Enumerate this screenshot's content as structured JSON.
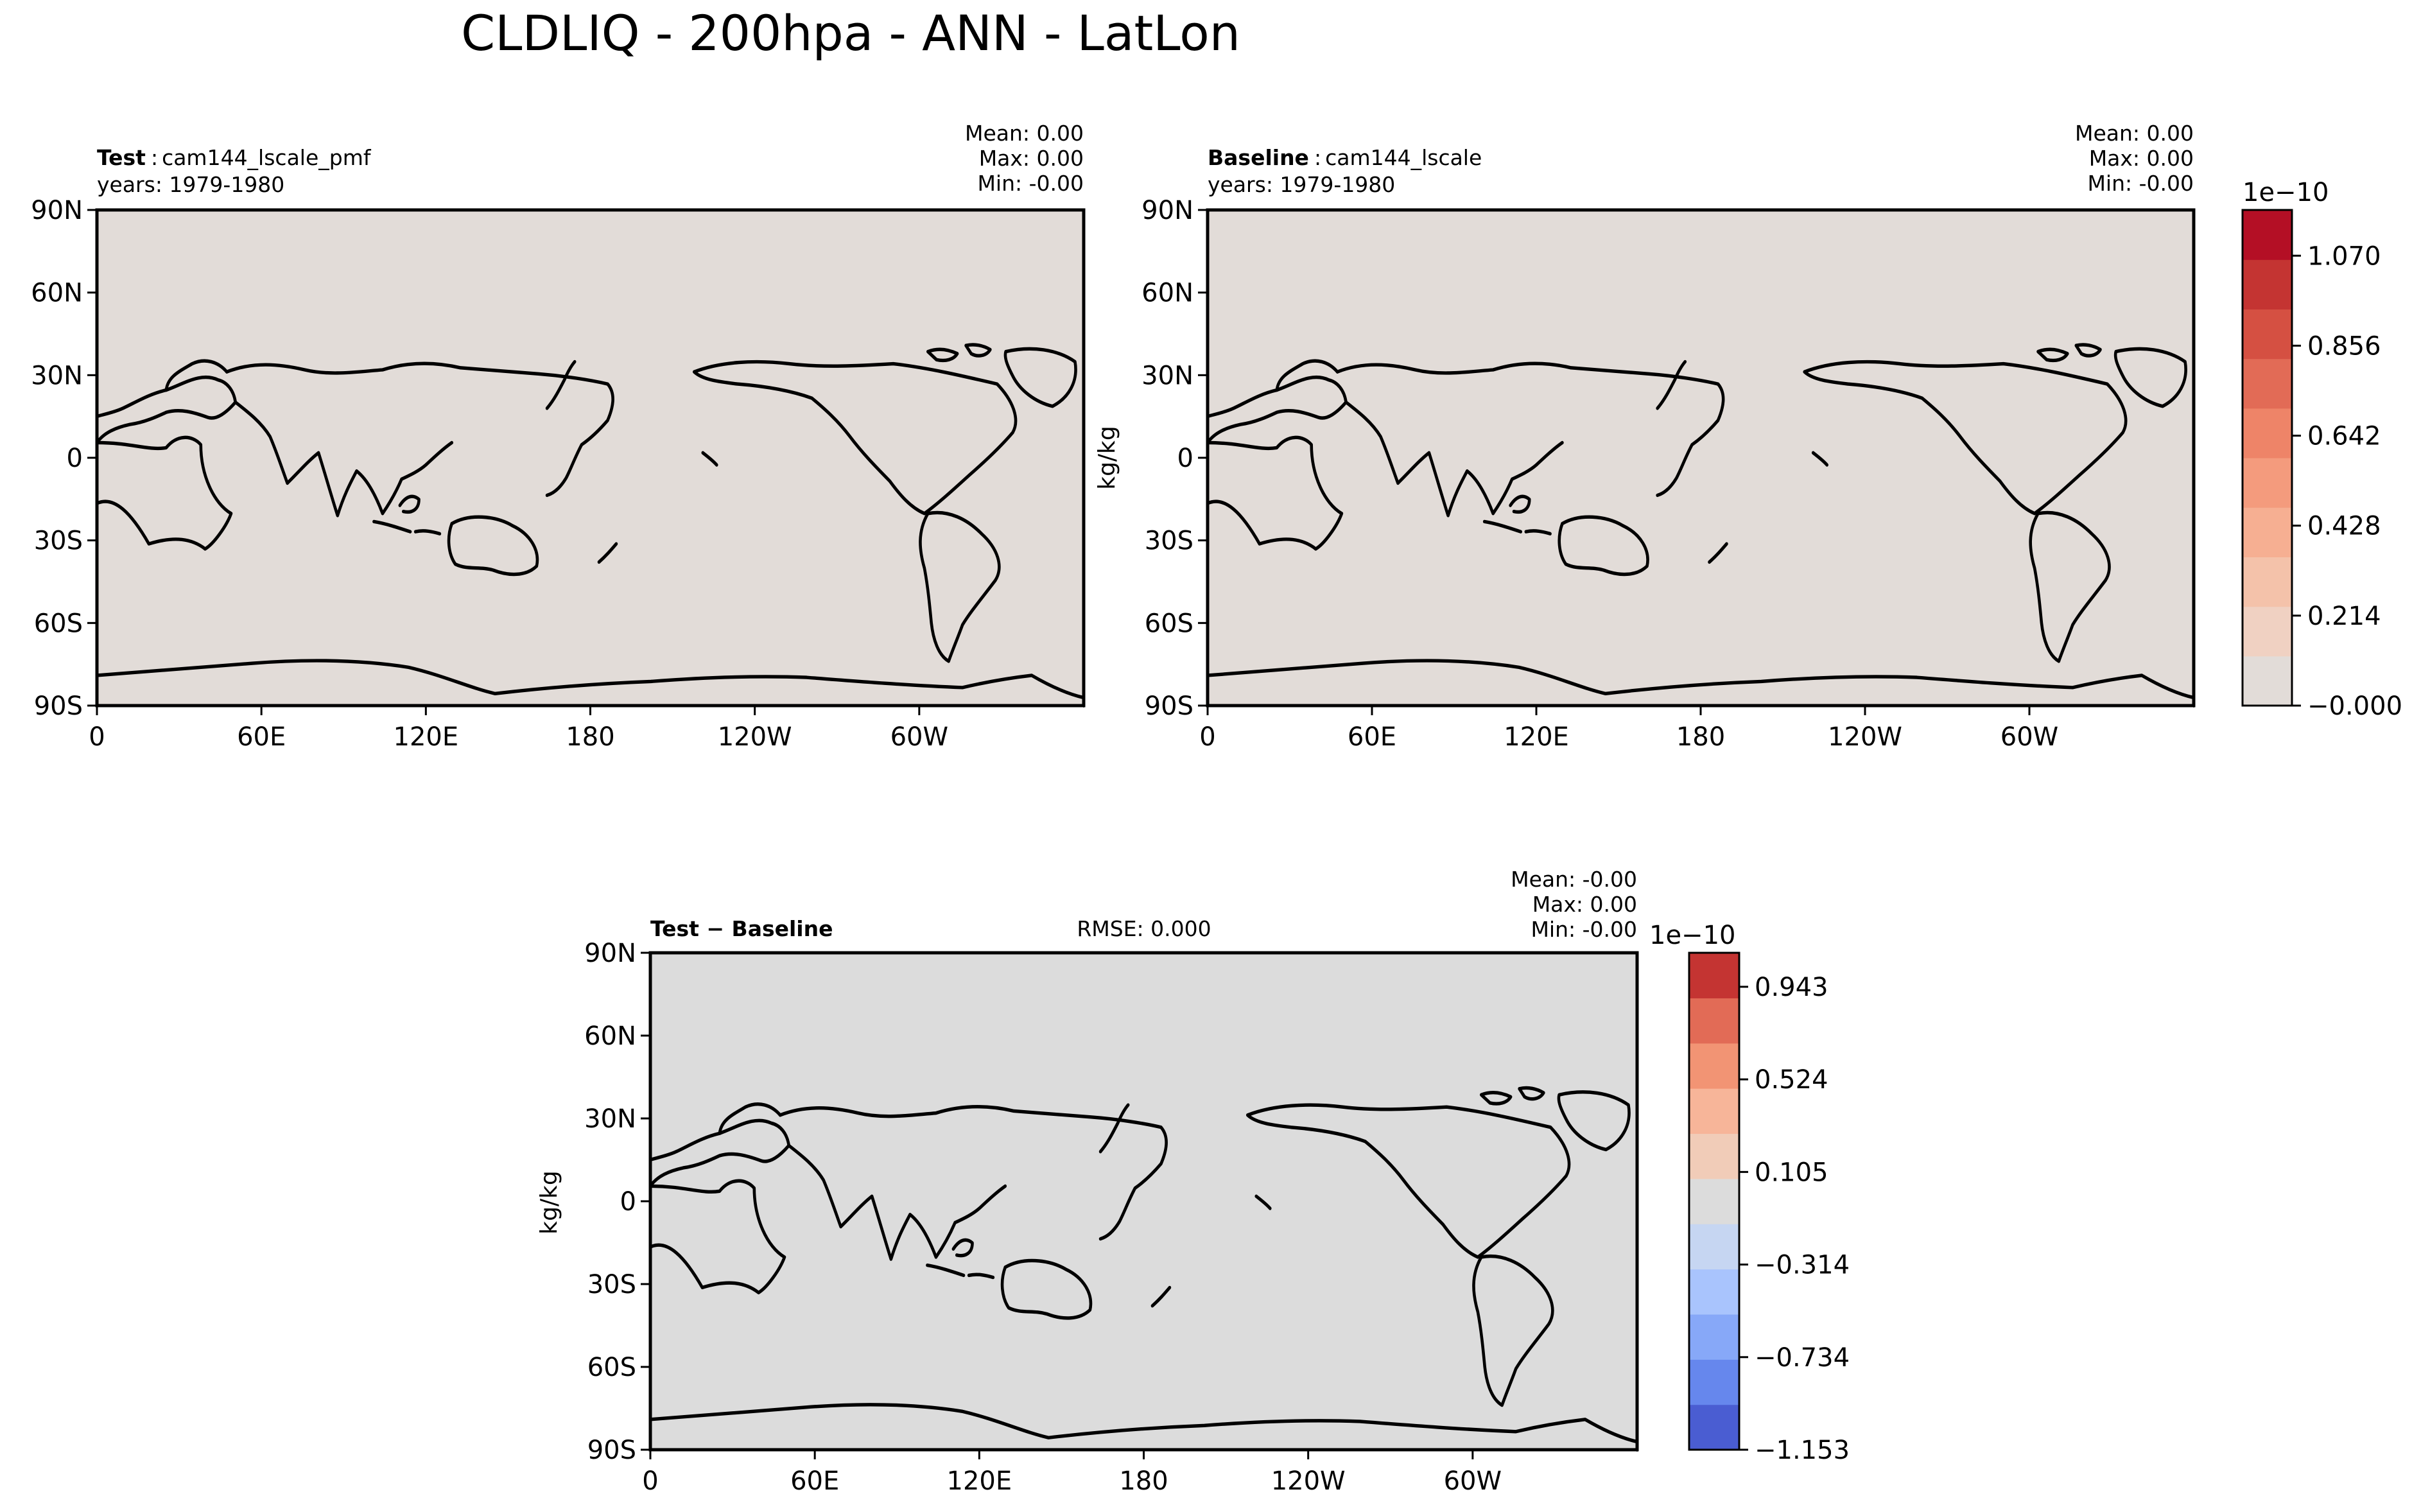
{
  "title": "CLDLIQ - 200hpa - ANN - LatLon",
  "lat_ticks": [
    "90N",
    "60N",
    "30N",
    "0",
    "30S",
    "60S",
    "90S"
  ],
  "lon_ticks": [
    "0",
    "60E",
    "120E",
    "180",
    "120W",
    "60W"
  ],
  "panels": {
    "test": {
      "label_bold": "Test",
      "label_sep": ":",
      "label_rest": "cam144_lscale_pmf",
      "years": "years: 1979-1980",
      "stats": [
        "Mean:  0.00",
        "Max:  0.00",
        "Min: -0.00"
      ],
      "fill_color": "#e2dcd8"
    },
    "baseline": {
      "label_bold": "Baseline",
      "label_sep": ":",
      "label_rest": "cam144_lscale",
      "years": "years: 1979-1980",
      "stats": [
        "Mean:  0.00",
        "Max:  0.00",
        "Min: -0.00"
      ],
      "ylabel": "kg/kg",
      "fill_color": "#e2dcd8"
    },
    "diff": {
      "label": "Test − Baseline",
      "rmse": "RMSE: 0.000",
      "stats": [
        "Mean: -0.00",
        "Max:  0.00",
        "Min: -0.00"
      ],
      "ylabel": "kg/kg",
      "fill_color": "#dcdcdc"
    }
  },
  "colorbar_top": {
    "exponent": "1e−10",
    "tick_labels": [
      "1.070",
      "0.856",
      "0.642",
      "0.428",
      "0.214",
      "−0.000"
    ],
    "colors": [
      "#e2dcd8",
      "#f0d1c2",
      "#f4c2aa",
      "#f6af92",
      "#f49b7d",
      "#ee8468",
      "#e26b56",
      "#d55042",
      "#c43432",
      "#b40f25"
    ]
  },
  "colorbar_diff": {
    "exponent": "1e−10",
    "tick_labels": [
      "0.943",
      "0.524",
      "0.105",
      "−0.314",
      "−0.734",
      "−1.153"
    ],
    "colors": [
      "#4a5dd2",
      "#6687ed",
      "#87a8f8",
      "#a9c4fd",
      "#c6d6f2",
      "#dcdcdc",
      "#f1ccb8",
      "#f7b599",
      "#f29474",
      "#e26b56",
      "#c43432"
    ]
  },
  "chart_data": [
    {
      "type": "heatmap",
      "panel": "test",
      "variable": "CLDLIQ",
      "level": "200hpa",
      "season": "ANN",
      "xlim": [
        0,
        360
      ],
      "ylim": [
        -90,
        90
      ],
      "mean": 0.0,
      "max": 0.0,
      "min": -0.0,
      "colorbar": "colorbar_top"
    },
    {
      "type": "heatmap",
      "panel": "baseline",
      "variable": "CLDLIQ",
      "level": "200hpa",
      "season": "ANN",
      "xlim": [
        0,
        360
      ],
      "ylim": [
        -90,
        90
      ],
      "mean": 0.0,
      "max": 0.0,
      "min": -0.0,
      "colorbar": "colorbar_top"
    },
    {
      "type": "heatmap",
      "panel": "diff",
      "variable": "CLDLIQ",
      "xlim": [
        0,
        360
      ],
      "ylim": [
        -90,
        90
      ],
      "mean": -0.0,
      "max": 0.0,
      "min": -0.0,
      "rmse": 0.0,
      "colorbar": "colorbar_diff"
    }
  ]
}
